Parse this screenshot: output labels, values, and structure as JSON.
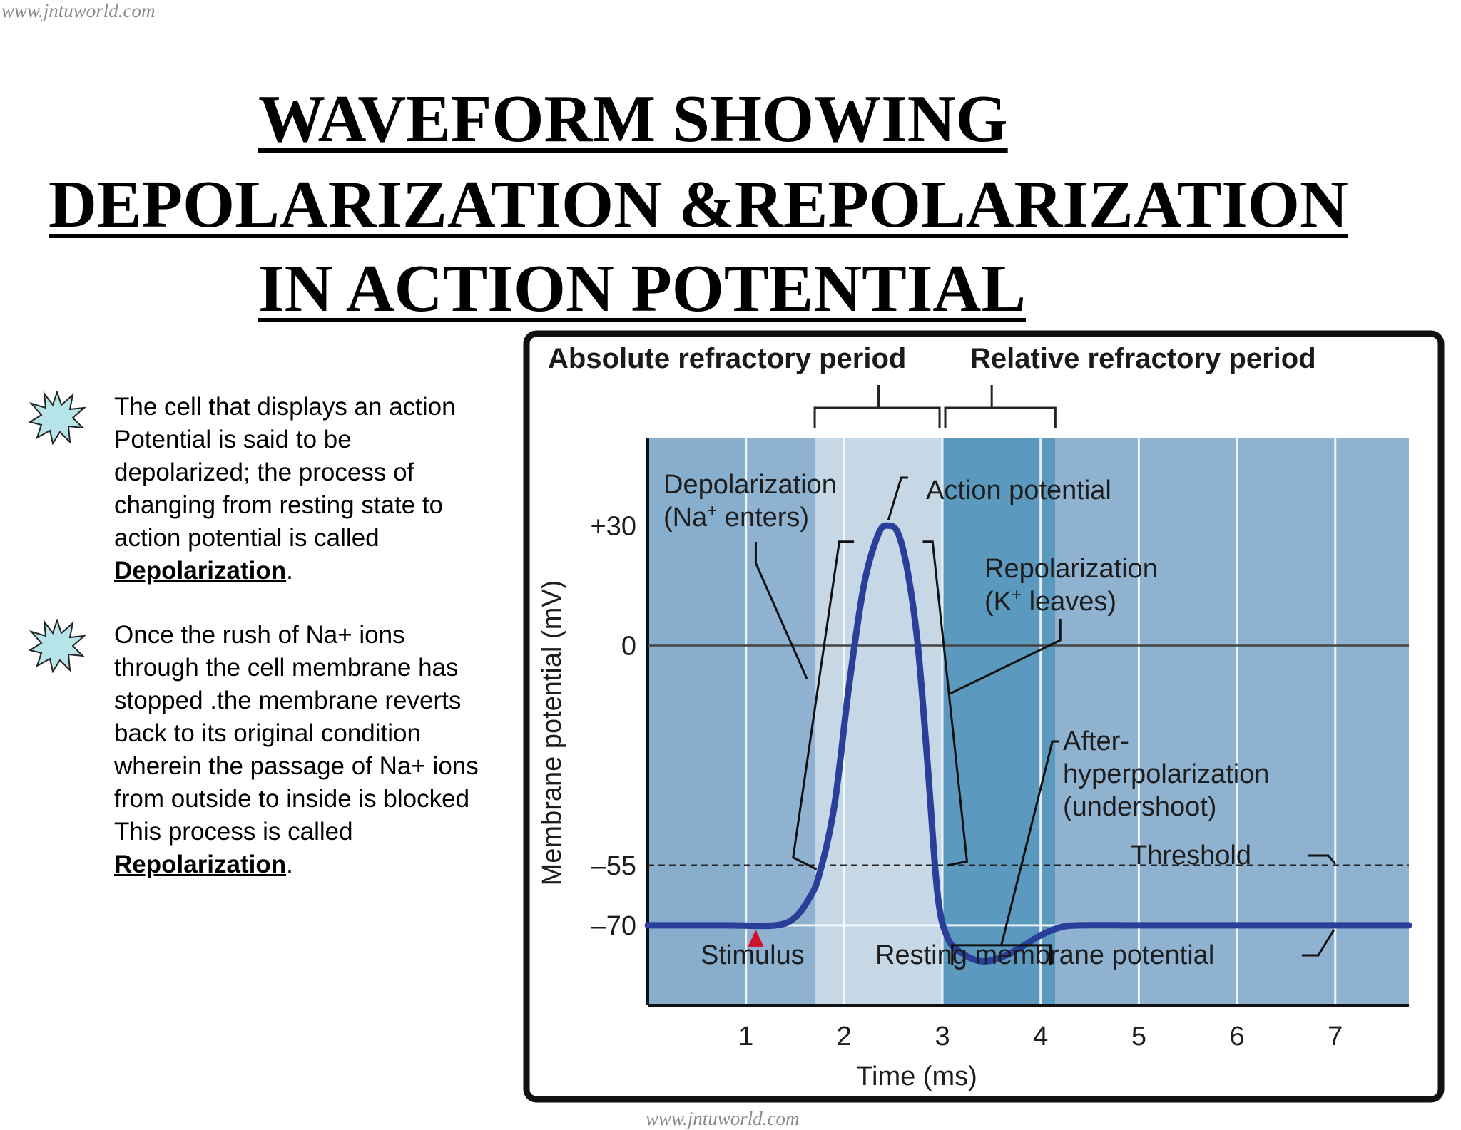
{
  "watermark": {
    "top": "www.jntuworld.com",
    "bottom": "www.jntuworld.com"
  },
  "title": {
    "line1": "WAVEFORM SHOWING",
    "line2": "DEPOLARIZATION &REPOLARIZATION",
    "line3": "IN ACTION POTENTIAL"
  },
  "bullets": [
    {
      "icon": "starburst-icon",
      "lines": [
        "The cell that displays an action",
        "Potential is said to be",
        "depolarized; the process of",
        "changing from resting state to",
        "action potential is called"
      ],
      "term": "Depolarization",
      "suffix": "."
    },
    {
      "icon": "starburst-icon",
      "lines": [
        "Once the rush of Na+ ions",
        "through the cell membrane has",
        "stopped .the membrane reverts",
        "back to its original condition",
        "wherein the passage of Na+ ions",
        "from outside to inside is blocked",
        "This process is called"
      ],
      "term": "Repolarization",
      "suffix": "."
    }
  ],
  "diagram": {
    "refractory": {
      "absolute": "Absolute refractory period",
      "relative": "Relative refractory period"
    },
    "labels": {
      "depolarization": "Depolarization",
      "depolarization_sub_pre": "(Na",
      "depolarization_sub_sup": "+",
      "depolarization_sub_post": " enters)",
      "action_potential": "Action potential",
      "repolarization": "Repolarization",
      "repolarization_sub_pre": "(K",
      "repolarization_sub_sup": "+",
      "repolarization_sub_post": " leaves)",
      "after1": "After-",
      "after2": "hyperpolarization",
      "after3": "(undershoot)",
      "threshold": "Threshold",
      "stimulus": "Stimulus",
      "resting": "Resting membrane potential"
    },
    "colors": {
      "band_base": "#8fb2d0",
      "band_light": "#c6d8e6",
      "band_dark": "#5c99be",
      "band_medium": "#7fa9c8",
      "trace": "#2a3f9a",
      "stimulus_arrow": "#d0112b"
    }
  },
  "chart_data": {
    "type": "line",
    "title": "",
    "xlabel": "Time (ms)",
    "ylabel": "Membrane potential (mV)",
    "x_ticks": [
      "1",
      "2",
      "3",
      "4",
      "5",
      "6",
      "7"
    ],
    "y_ticks": [
      "+30",
      "0",
      "–55",
      "–70"
    ],
    "xlim": [
      0,
      7.75
    ],
    "ylim": [
      -90,
      52
    ],
    "threshold_mv": -55,
    "resting_mv": -70,
    "stimulus_ms": 1.1,
    "series": [
      {
        "name": "Membrane potential",
        "points": [
          [
            0,
            -70
          ],
          [
            0.8,
            -70
          ],
          [
            1.3,
            -70
          ],
          [
            1.5,
            -68
          ],
          [
            1.65,
            -63
          ],
          [
            1.75,
            -57
          ],
          [
            1.9,
            -40
          ],
          [
            2.05,
            -10
          ],
          [
            2.2,
            15
          ],
          [
            2.35,
            28
          ],
          [
            2.45,
            30
          ],
          [
            2.55,
            28
          ],
          [
            2.65,
            18
          ],
          [
            2.75,
            0
          ],
          [
            2.85,
            -30
          ],
          [
            2.95,
            -62
          ],
          [
            3.05,
            -73
          ],
          [
            3.2,
            -77
          ],
          [
            3.4,
            -79
          ],
          [
            3.6,
            -78
          ],
          [
            3.8,
            -75.5
          ],
          [
            4.0,
            -72.5
          ],
          [
            4.2,
            -70.5
          ],
          [
            4.4,
            -70
          ],
          [
            5.0,
            -70
          ],
          [
            6.0,
            -70
          ],
          [
            7.75,
            -70
          ]
        ]
      }
    ],
    "bands": [
      {
        "from": 0,
        "to": 1.7,
        "shade": "base"
      },
      {
        "from": 1.7,
        "to": 3.0,
        "shade": "light"
      },
      {
        "from": 3.0,
        "to": 4.15,
        "shade": "dark"
      },
      {
        "from": 4.15,
        "to": 7.75,
        "shade": "base"
      }
    ],
    "refractory_periods": {
      "absolute_ms": [
        1.7,
        3.0
      ],
      "relative_ms": [
        3.0,
        4.15
      ]
    }
  }
}
